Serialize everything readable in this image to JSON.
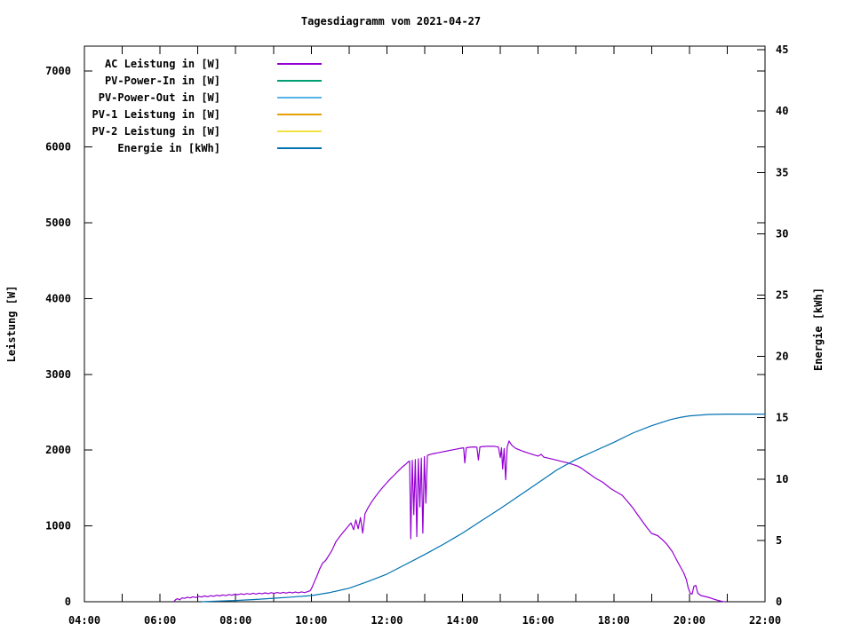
{
  "page": {
    "background": "#ffffff"
  },
  "chart_data": {
    "type": "line",
    "title": "Tagesdiagramm vom 2021-04-27",
    "grid": false,
    "legend_position": "inside-top-left",
    "x_axis": {
      "unit": "time-of-day",
      "start_hour": 4,
      "end_hour": 22,
      "minor_tick_hours": 1,
      "label_interval_hours": 2,
      "tick_labels": [
        "04:00",
        "06:00",
        "08:00",
        "10:00",
        "12:00",
        "14:00",
        "16:00",
        "18:00",
        "20:00",
        "22:00"
      ]
    },
    "y_axis": {
      "label": "Leistung [W]",
      "min": 0,
      "max": 7330,
      "tick_interval": 1000,
      "ticks": [
        0,
        1000,
        2000,
        3000,
        4000,
        5000,
        6000,
        7000
      ],
      "tick_labels": [
        "0",
        "1000",
        "2000",
        "3000",
        "4000",
        "5000",
        "6000",
        "7000"
      ]
    },
    "y2_axis": {
      "label": "Energie [kWh]",
      "min": 0,
      "max": 45.3,
      "tick_interval": 5,
      "ticks": [
        0,
        5,
        10,
        15,
        20,
        25,
        30,
        35,
        40,
        45
      ],
      "tick_labels": [
        "0",
        "5",
        "10",
        "15",
        "20",
        "25",
        "30",
        "35",
        "40",
        "45"
      ]
    },
    "series": [
      {
        "name": "AC Leistung in [W]",
        "color": "#9400d3",
        "axis": "y1",
        "points": [
          [
            6.37,
            5
          ],
          [
            6.42,
            30
          ],
          [
            6.47,
            40
          ],
          [
            6.52,
            25
          ],
          [
            6.58,
            50
          ],
          [
            6.65,
            45
          ],
          [
            6.72,
            60
          ],
          [
            6.8,
            50
          ],
          [
            6.87,
            65
          ],
          [
            6.95,
            55
          ],
          [
            7.02,
            70
          ],
          [
            7.1,
            62
          ],
          [
            7.18,
            76
          ],
          [
            7.26,
            66
          ],
          [
            7.34,
            80
          ],
          [
            7.42,
            72
          ],
          [
            7.5,
            85
          ],
          [
            7.58,
            76
          ],
          [
            7.66,
            90
          ],
          [
            7.74,
            80
          ],
          [
            7.82,
            95
          ],
          [
            7.9,
            86
          ],
          [
            7.98,
            100
          ],
          [
            8.06,
            92
          ],
          [
            8.14,
            104
          ],
          [
            8.22,
            96
          ],
          [
            8.3,
            108
          ],
          [
            8.38,
            98
          ],
          [
            8.46,
            112
          ],
          [
            8.54,
            101
          ],
          [
            8.62,
            114
          ],
          [
            8.7,
            104
          ],
          [
            8.78,
            117
          ],
          [
            8.86,
            107
          ],
          [
            8.94,
            120
          ],
          [
            9.02,
            110
          ],
          [
            9.1,
            122
          ],
          [
            9.18,
            112
          ],
          [
            9.26,
            124
          ],
          [
            9.34,
            114
          ],
          [
            9.42,
            126
          ],
          [
            9.5,
            116
          ],
          [
            9.58,
            128
          ],
          [
            9.66,
            118
          ],
          [
            9.74,
            130
          ],
          [
            9.82,
            121
          ],
          [
            9.9,
            132
          ],
          [
            9.97,
            145
          ],
          [
            10.02,
            190
          ],
          [
            10.08,
            260
          ],
          [
            10.15,
            340
          ],
          [
            10.22,
            430
          ],
          [
            10.3,
            510
          ],
          [
            10.38,
            545
          ],
          [
            10.45,
            600
          ],
          [
            10.55,
            680
          ],
          [
            10.65,
            790
          ],
          [
            10.75,
            860
          ],
          [
            10.85,
            920
          ],
          [
            10.95,
            980
          ],
          [
            11.05,
            1040
          ],
          [
            11.12,
            950
          ],
          [
            11.18,
            1080
          ],
          [
            11.24,
            962
          ],
          [
            11.3,
            1110
          ],
          [
            11.36,
            905
          ],
          [
            11.42,
            1160
          ],
          [
            11.5,
            1240
          ],
          [
            11.6,
            1320
          ],
          [
            11.7,
            1390
          ],
          [
            11.8,
            1455
          ],
          [
            11.9,
            1515
          ],
          [
            12.0,
            1570
          ],
          [
            12.1,
            1625
          ],
          [
            12.2,
            1675
          ],
          [
            12.3,
            1725
          ],
          [
            12.4,
            1775
          ],
          [
            12.5,
            1815
          ],
          [
            12.56,
            1845
          ],
          [
            12.6,
            1855
          ],
          [
            12.63,
            830
          ],
          [
            12.67,
            1865
          ],
          [
            12.71,
            1150
          ],
          [
            12.75,
            1875
          ],
          [
            12.79,
            860
          ],
          [
            12.83,
            1885
          ],
          [
            12.87,
            1250
          ],
          [
            12.91,
            1895
          ],
          [
            12.95,
            905
          ],
          [
            12.99,
            1915
          ],
          [
            13.03,
            1300
          ],
          [
            13.07,
            1930
          ],
          [
            13.15,
            1945
          ],
          [
            13.25,
            1955
          ],
          [
            13.35,
            1965
          ],
          [
            13.45,
            1975
          ],
          [
            13.55,
            1985
          ],
          [
            13.65,
            1995
          ],
          [
            13.75,
            2005
          ],
          [
            13.85,
            2015
          ],
          [
            13.95,
            2025
          ],
          [
            14.03,
            2030
          ],
          [
            14.06,
            1830
          ],
          [
            14.1,
            2032
          ],
          [
            14.2,
            2038
          ],
          [
            14.3,
            2042
          ],
          [
            14.38,
            2040
          ],
          [
            14.42,
            1870
          ],
          [
            14.46,
            2042
          ],
          [
            14.55,
            2048
          ],
          [
            14.65,
            2050
          ],
          [
            14.75,
            2052
          ],
          [
            14.85,
            2050
          ],
          [
            14.95,
            2040
          ],
          [
            15.0,
            1900
          ],
          [
            15.03,
            2030
          ],
          [
            15.06,
            1750
          ],
          [
            15.1,
            2020
          ],
          [
            15.14,
            1610
          ],
          [
            15.18,
            2040
          ],
          [
            15.23,
            2120
          ],
          [
            15.3,
            2065
          ],
          [
            15.4,
            2025
          ],
          [
            15.5,
            2005
          ],
          [
            15.6,
            1985
          ],
          [
            15.7,
            1968
          ],
          [
            15.8,
            1952
          ],
          [
            15.9,
            1936
          ],
          [
            16.0,
            1922
          ],
          [
            16.08,
            1945
          ],
          [
            16.15,
            1908
          ],
          [
            16.25,
            1896
          ],
          [
            16.35,
            1884
          ],
          [
            16.45,
            1872
          ],
          [
            16.55,
            1860
          ],
          [
            16.65,
            1848
          ],
          [
            16.75,
            1836
          ],
          [
            16.85,
            1822
          ],
          [
            16.95,
            1806
          ],
          [
            17.05,
            1788
          ],
          [
            17.15,
            1760
          ],
          [
            17.25,
            1722
          ],
          [
            17.35,
            1690
          ],
          [
            17.45,
            1652
          ],
          [
            17.55,
            1620
          ],
          [
            17.7,
            1580
          ],
          [
            17.8,
            1540
          ],
          [
            17.9,
            1500
          ],
          [
            18.0,
            1468
          ],
          [
            18.1,
            1440
          ],
          [
            18.22,
            1405
          ],
          [
            18.35,
            1330
          ],
          [
            18.5,
            1240
          ],
          [
            18.6,
            1170
          ],
          [
            18.7,
            1100
          ],
          [
            18.8,
            1030
          ],
          [
            18.9,
            962
          ],
          [
            19.0,
            902
          ],
          [
            19.16,
            872
          ],
          [
            19.3,
            812
          ],
          [
            19.4,
            760
          ],
          [
            19.55,
            660
          ],
          [
            19.65,
            562
          ],
          [
            19.75,
            470
          ],
          [
            19.85,
            380
          ],
          [
            19.92,
            290
          ],
          [
            19.97,
            182
          ],
          [
            20.02,
            115
          ],
          [
            20.07,
            100
          ],
          [
            20.12,
            205
          ],
          [
            20.17,
            215
          ],
          [
            20.22,
            112
          ],
          [
            20.3,
            82
          ],
          [
            20.4,
            70
          ],
          [
            20.5,
            58
          ],
          [
            20.6,
            42
          ],
          [
            20.7,
            26
          ],
          [
            20.8,
            12
          ],
          [
            20.88,
            4
          ],
          [
            20.95,
            0
          ]
        ]
      },
      {
        "name": "PV-Power-In in [W]",
        "color": "#009e73",
        "axis": "y1",
        "points": []
      },
      {
        "name": "PV-Power-Out in [W]",
        "color": "#56b4e9",
        "axis": "y1",
        "points": []
      },
      {
        "name": "PV-1 Leistung in [W]",
        "color": "#e69f00",
        "axis": "y1",
        "points": []
      },
      {
        "name": "PV-2 Leistung in [W]",
        "color": "#f0e442",
        "axis": "y1",
        "points": []
      },
      {
        "name": "Energie in [kWh]",
        "color": "#0072b2",
        "axis": "y2",
        "points": [
          [
            7.1,
            0
          ],
          [
            7.5,
            0.05
          ],
          [
            8,
            0.1
          ],
          [
            8.5,
            0.18
          ],
          [
            9,
            0.28
          ],
          [
            9.5,
            0.38
          ],
          [
            10,
            0.5
          ],
          [
            10.5,
            0.75
          ],
          [
            11,
            1.1
          ],
          [
            11.5,
            1.65
          ],
          [
            12,
            2.25
          ],
          [
            12.5,
            3.05
          ],
          [
            13,
            3.85
          ],
          [
            13.5,
            4.7
          ],
          [
            14,
            5.6
          ],
          [
            14.5,
            6.6
          ],
          [
            14.75,
            7.1
          ],
          [
            15,
            7.6
          ],
          [
            15.5,
            8.65
          ],
          [
            16,
            9.7
          ],
          [
            16.5,
            10.75
          ],
          [
            17,
            11.6
          ],
          [
            17.5,
            12.3
          ],
          [
            18,
            13.0
          ],
          [
            18.5,
            13.75
          ],
          [
            19,
            14.35
          ],
          [
            19.5,
            14.85
          ],
          [
            19.75,
            15.02
          ],
          [
            20,
            15.15
          ],
          [
            20.5,
            15.27
          ],
          [
            21,
            15.3
          ],
          [
            21.5,
            15.3
          ],
          [
            22,
            15.3
          ]
        ]
      }
    ],
    "final_energy_kwh": 15.3,
    "peak_ac_power_w": 2120
  }
}
